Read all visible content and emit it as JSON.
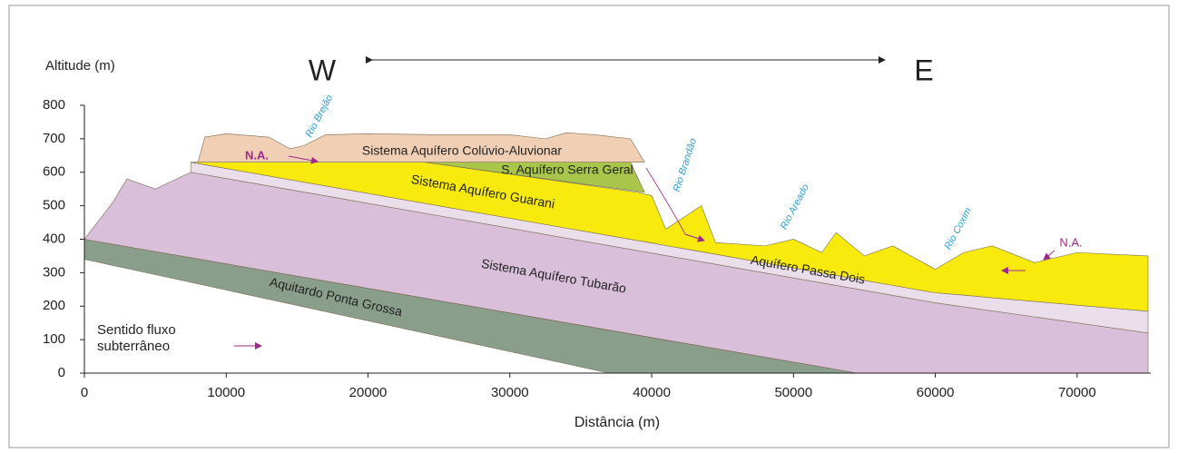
{
  "chart_data": {
    "type": "cross-section",
    "ylabel": "Altitude (m)",
    "xlabel": "Distância (m)",
    "xlim": [
      0,
      75000
    ],
    "ylim": [
      0,
      800
    ],
    "xticks": [
      0,
      10000,
      20000,
      30000,
      40000,
      50000,
      60000,
      70000
    ],
    "yticks": [
      0,
      100,
      200,
      300,
      400,
      500,
      600,
      700,
      800
    ],
    "series": [
      {
        "name": "Aquitardo Ponta Grossa",
        "color": "#8a9e8c",
        "x": [
          0,
          37000,
          54500
        ],
        "top": [
          400,
          128,
          0
        ],
        "bottom": [
          340,
          0,
          0
        ]
      },
      {
        "name": "Sistema Aquífero Tubarão",
        "color": "#d9bfd9",
        "x": [
          0,
          2000,
          3000,
          5000,
          7500,
          54500,
          60000,
          75000
        ],
        "top": [
          400,
          510,
          580,
          550,
          600,
          251,
          210,
          120
        ],
        "bottom": [
          400,
          385,
          378,
          363,
          345,
          0,
          0,
          0
        ]
      },
      {
        "name": "Aquífero Passa Dois",
        "color": "#ebdeeb",
        "x": [
          7500,
          60000,
          75000
        ],
        "top": [
          630,
          240,
          185
        ],
        "bottom": [
          600,
          210,
          120
        ]
      },
      {
        "name": "Sistema Aquífero Guarani",
        "color": "#f7ea0c",
        "x": [
          7500,
          24000,
          39000,
          40000,
          41000,
          43500,
          44500,
          48000,
          50000,
          52000,
          53000,
          55000,
          57000,
          60000,
          62000,
          64000,
          67000,
          70000,
          75000
        ],
        "top": [
          630,
          630,
          540,
          530,
          430,
          500,
          390,
          380,
          400,
          360,
          420,
          350,
          380,
          310,
          360,
          380,
          330,
          360,
          350
        ],
        "bottom": [
          630,
          507,
          396,
          389,
          381,
          363,
          355,
          329,
          314,
          299,
          292,
          277,
          262,
          240,
          233,
          225,
          214,
          203,
          185
        ]
      },
      {
        "name": "S. Aquífero Serra Geral",
        "color": "#a9c64b",
        "x": [
          24000,
          38500,
          39500
        ],
        "top": [
          630,
          630,
          540
        ],
        "bottom": [
          630,
          546,
          540
        ]
      },
      {
        "name": "Sistema Aquífero Colúvio-Aluvionar",
        "color": "#f1cfb5",
        "x": [
          8000,
          8500,
          10000,
          13000,
          14500,
          15500,
          17000,
          20000,
          25000,
          30000,
          32500,
          34000,
          36000,
          38500,
          39500
        ],
        "top": [
          630,
          705,
          715,
          705,
          670,
          680,
          712,
          715,
          712,
          712,
          700,
          718,
          712,
          700,
          630
        ],
        "bottom": [
          630,
          630,
          630,
          630,
          630,
          630,
          630,
          630,
          630,
          630,
          630,
          630,
          630,
          630,
          630
        ]
      }
    ],
    "directions": [
      "W",
      "E"
    ],
    "water_table": [
      "N.A.",
      "N.A."
    ],
    "rivers": [
      "Rio Brejão",
      "Rio Brandão",
      "Rio Areado",
      "Rio Coxim"
    ],
    "flow_note": [
      "Sentido fluxo",
      "subterrâneo"
    ]
  }
}
